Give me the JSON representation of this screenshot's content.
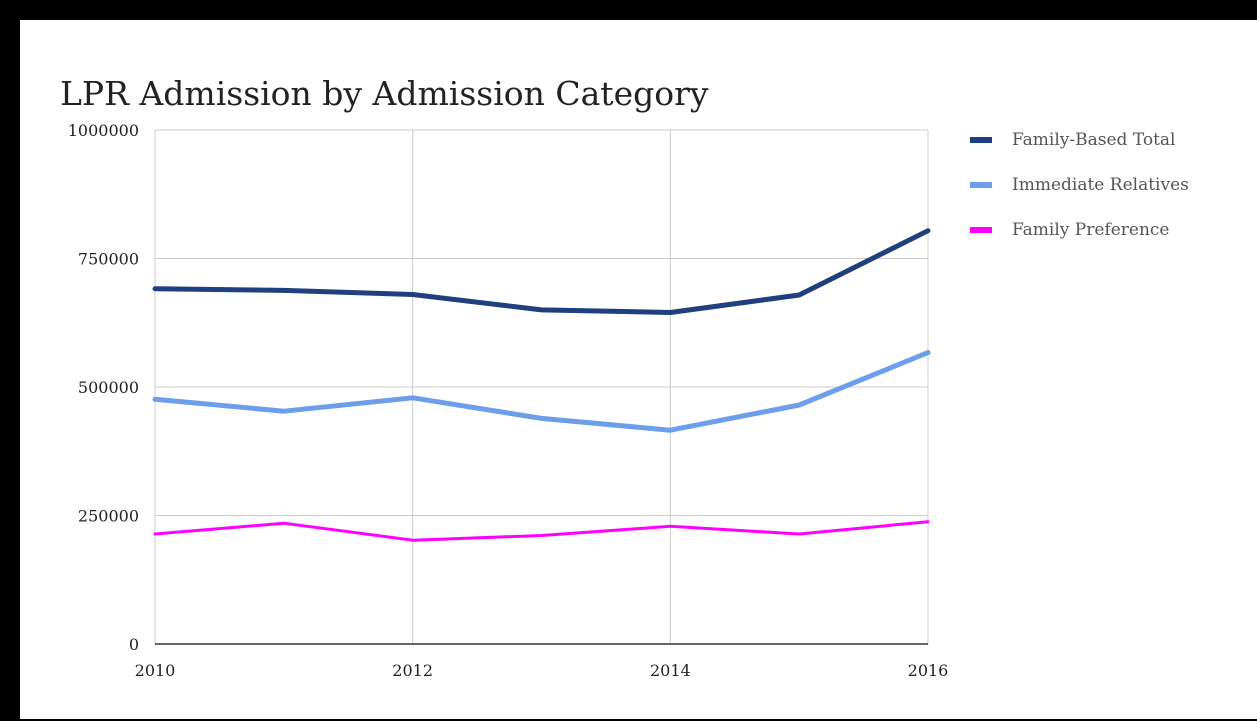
{
  "chart_data": {
    "type": "line",
    "title": "LPR Admission by Admission Category",
    "xlabel": "",
    "ylabel": "",
    "x": [
      2010,
      2011,
      2012,
      2013,
      2014,
      2015,
      2016
    ],
    "x_ticks": [
      "2010",
      "2012",
      "2014",
      "2016"
    ],
    "y_ticks": [
      "0",
      "250000",
      "500000",
      "750000",
      "1000000"
    ],
    "ylim": [
      0,
      1000000
    ],
    "xlim": [
      2010,
      2016
    ],
    "grid": true,
    "legend_position": "right",
    "series": [
      {
        "name": "Family-Based Total",
        "color": "#1f3f7f",
        "values": [
          691000,
          688000,
          680000,
          650000,
          645000,
          679000,
          804000
        ]
      },
      {
        "name": "Immediate Relatives",
        "color": "#6d9eeb",
        "values": [
          476000,
          453000,
          479000,
          439000,
          416000,
          465000,
          567000
        ]
      },
      {
        "name": "Family Preference",
        "color": "#ff00ff",
        "values": [
          214000,
          235000,
          202000,
          211000,
          229000,
          214000,
          238000
        ]
      }
    ]
  }
}
